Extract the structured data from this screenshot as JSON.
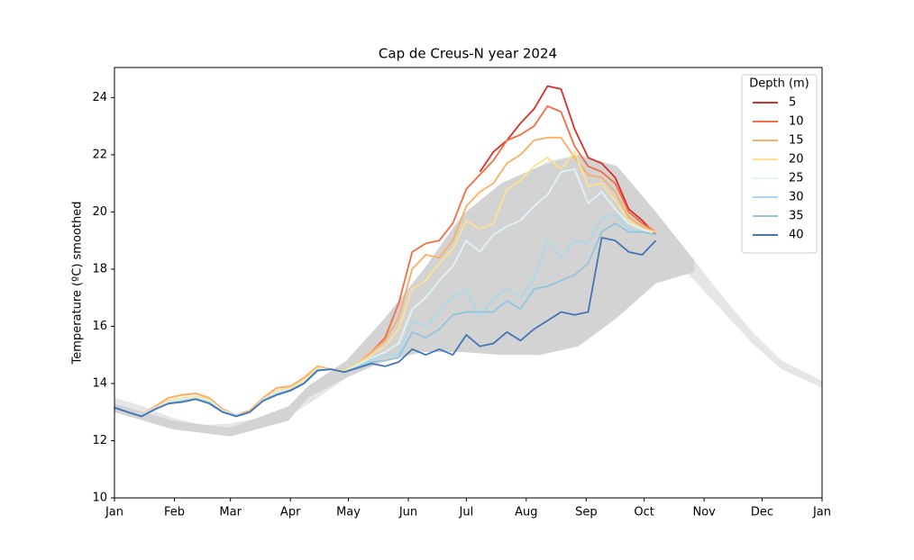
{
  "chart_data": {
    "type": "line",
    "title": "Cap de Creus-N year 2024",
    "y_label": "Temperature (ºC) smoothed",
    "legend_title": "Depth (m)",
    "legend": "upper right",
    "xlim": [
      0,
      366
    ],
    "xticks": [
      {
        "value": 0,
        "label": "Jan"
      },
      {
        "value": 31,
        "label": "Feb"
      },
      {
        "value": 60,
        "label": "Mar"
      },
      {
        "value": 91,
        "label": "Apr"
      },
      {
        "value": 121,
        "label": "May"
      },
      {
        "value": 152,
        "label": "Jun"
      },
      {
        "value": 182,
        "label": "Jul"
      },
      {
        "value": 213,
        "label": "Aug"
      },
      {
        "value": 244,
        "label": "Sep"
      },
      {
        "value": 274,
        "label": "Oct"
      },
      {
        "value": 305,
        "label": "Nov"
      },
      {
        "value": 335,
        "label": "Dec"
      },
      {
        "value": 366,
        "label": "Jan"
      }
    ],
    "ylim": [
      10,
      25.05
    ],
    "yticks": [
      10,
      12,
      14,
      16,
      18,
      20,
      22,
      24
    ],
    "bands": [
      {
        "color": "#e6e6e6",
        "x": [
          0,
          15,
          30,
          45,
          60,
          75,
          90,
          105,
          120,
          135,
          150,
          165,
          180,
          195,
          210,
          225,
          240,
          255,
          270,
          285,
          300,
          315,
          330,
          345,
          366
        ],
        "lower": [
          13.2,
          12.9,
          12.55,
          12.35,
          12.3,
          12.45,
          12.85,
          13.5,
          14.2,
          14.9,
          15.8,
          16.8,
          17.7,
          18.6,
          19.3,
          19.9,
          20.3,
          20.2,
          19.5,
          18.6,
          17.6,
          16.5,
          15.4,
          14.5,
          13.85
        ],
        "upper": [
          13.5,
          13.2,
          12.8,
          12.55,
          12.6,
          12.8,
          13.2,
          13.9,
          14.7,
          15.6,
          16.8,
          18.2,
          19.4,
          20.5,
          21.2,
          21.8,
          22.0,
          21.6,
          20.6,
          19.5,
          18.3,
          17.0,
          15.8,
          14.8,
          14.1
        ]
      },
      {
        "color": "#d3d3d3",
        "x": [
          0,
          30,
          60,
          90,
          100,
          120,
          140,
          160,
          180,
          200,
          220,
          240,
          260,
          280,
          300
        ],
        "lower": [
          13.0,
          12.4,
          12.15,
          12.7,
          13.5,
          14.2,
          14.8,
          15.1,
          15.1,
          15.0,
          15.0,
          15.3,
          16.3,
          17.5,
          17.9
        ],
        "upper": [
          13.3,
          12.7,
          12.45,
          13.2,
          13.9,
          14.8,
          16.3,
          18.0,
          19.9,
          21.0,
          21.6,
          22.0,
          21.6,
          20.0,
          18.3
        ]
      }
    ],
    "x": [
      0,
      7,
      14,
      21,
      28,
      35,
      42,
      49,
      56,
      63,
      70,
      77,
      84,
      91,
      98,
      105,
      112,
      119,
      126,
      133,
      140,
      147,
      154,
      161,
      168,
      175,
      182,
      189,
      196,
      203,
      210,
      217,
      224,
      231,
      238,
      245,
      252,
      259,
      266,
      273,
      280
    ],
    "series": [
      {
        "name": "5",
        "color": "#d73027",
        "values": [
          null,
          null,
          null,
          null,
          null,
          null,
          null,
          null,
          null,
          null,
          null,
          null,
          null,
          null,
          null,
          null,
          null,
          null,
          null,
          null,
          null,
          null,
          null,
          null,
          null,
          null,
          null,
          21.4,
          22.1,
          22.5,
          23.1,
          23.6,
          24.4,
          24.3,
          22.9,
          21.9,
          21.7,
          21.2,
          20.1,
          19.7,
          19.2
        ]
      },
      {
        "name": "10",
        "color": "#f46d43",
        "values": [
          13.2,
          13.0,
          12.9,
          13.2,
          13.5,
          13.6,
          13.65,
          13.5,
          13.1,
          12.9,
          13.05,
          13.5,
          13.85,
          13.9,
          14.2,
          14.6,
          14.5,
          14.45,
          14.7,
          15.1,
          15.6,
          16.8,
          18.6,
          18.9,
          19.0,
          19.6,
          20.8,
          21.3,
          21.8,
          22.5,
          22.7,
          23.0,
          23.7,
          23.5,
          22.3,
          21.6,
          21.4,
          21.0,
          20.0,
          19.6,
          19.3
        ]
      },
      {
        "name": "15",
        "color": "#fdae61",
        "values": [
          13.2,
          13.0,
          12.9,
          13.2,
          13.5,
          13.6,
          13.65,
          13.5,
          13.1,
          12.9,
          13.05,
          13.5,
          13.85,
          13.9,
          14.2,
          14.6,
          14.5,
          14.45,
          14.7,
          15.1,
          15.5,
          16.3,
          18.0,
          18.5,
          18.4,
          19.0,
          20.2,
          20.7,
          21.0,
          21.7,
          22.0,
          22.5,
          22.6,
          22.6,
          21.9,
          21.3,
          21.2,
          20.7,
          19.8,
          19.5,
          19.3
        ]
      },
      {
        "name": "20",
        "color": "#fee090",
        "values": [
          13.2,
          13.0,
          12.9,
          13.15,
          13.4,
          13.5,
          13.55,
          13.45,
          13.05,
          12.9,
          13.0,
          13.45,
          13.75,
          13.85,
          14.1,
          14.55,
          14.5,
          14.45,
          14.7,
          15.0,
          15.3,
          15.9,
          17.3,
          17.6,
          18.2,
          18.7,
          19.7,
          19.4,
          19.6,
          20.8,
          21.1,
          21.6,
          21.9,
          21.5,
          22.1,
          20.9,
          21.0,
          20.4,
          19.7,
          19.4,
          19.3
        ]
      },
      {
        "name": "25",
        "color": "#e0f3f8",
        "values": [
          13.2,
          13.0,
          12.9,
          13.15,
          13.35,
          13.45,
          13.5,
          13.4,
          13.05,
          12.9,
          13.0,
          13.45,
          13.7,
          13.8,
          14.05,
          14.5,
          14.5,
          14.4,
          14.65,
          14.9,
          15.1,
          15.4,
          16.6,
          17.0,
          17.6,
          18.1,
          19.0,
          18.6,
          19.2,
          19.5,
          19.7,
          20.2,
          20.6,
          21.4,
          21.5,
          20.3,
          20.7,
          20.1,
          19.6,
          19.4,
          19.2
        ]
      },
      {
        "name": "30",
        "color": "#abd9e9",
        "values": [
          13.2,
          13.0,
          12.88,
          13.12,
          13.32,
          13.4,
          13.48,
          13.35,
          13.02,
          12.88,
          13.0,
          13.42,
          13.65,
          13.78,
          14.02,
          14.48,
          14.5,
          14.4,
          14.6,
          14.85,
          15.0,
          15.0,
          16.2,
          16.0,
          16.5,
          17.0,
          17.3,
          16.3,
          17.0,
          17.3,
          17.0,
          17.7,
          19.0,
          18.4,
          19.0,
          18.9,
          19.8,
          19.9,
          19.4,
          19.3,
          19.2
        ]
      },
      {
        "name": "35",
        "color": "#92c5de",
        "values": [
          13.18,
          13.0,
          12.86,
          13.1,
          13.3,
          13.38,
          13.46,
          13.32,
          13.0,
          12.86,
          13.0,
          13.4,
          13.62,
          13.76,
          14.0,
          14.46,
          14.5,
          14.4,
          14.58,
          14.75,
          14.8,
          14.9,
          15.8,
          15.6,
          15.9,
          16.4,
          16.5,
          16.5,
          16.5,
          16.9,
          16.6,
          17.3,
          17.4,
          17.6,
          17.8,
          18.2,
          19.3,
          19.6,
          19.3,
          19.3,
          19.2
        ]
      },
      {
        "name": "40",
        "color": "#4575b4",
        "values": [
          13.15,
          13.0,
          12.85,
          13.1,
          13.3,
          13.35,
          13.45,
          13.3,
          13.0,
          12.85,
          13.0,
          13.4,
          13.6,
          13.75,
          14.0,
          14.45,
          14.5,
          14.4,
          14.55,
          14.7,
          14.6,
          14.75,
          15.2,
          15.0,
          15.2,
          15.0,
          15.7,
          15.3,
          15.4,
          15.8,
          15.5,
          15.9,
          16.2,
          16.5,
          16.4,
          16.5,
          19.1,
          19.0,
          18.6,
          18.5,
          19.0
        ]
      }
    ]
  }
}
